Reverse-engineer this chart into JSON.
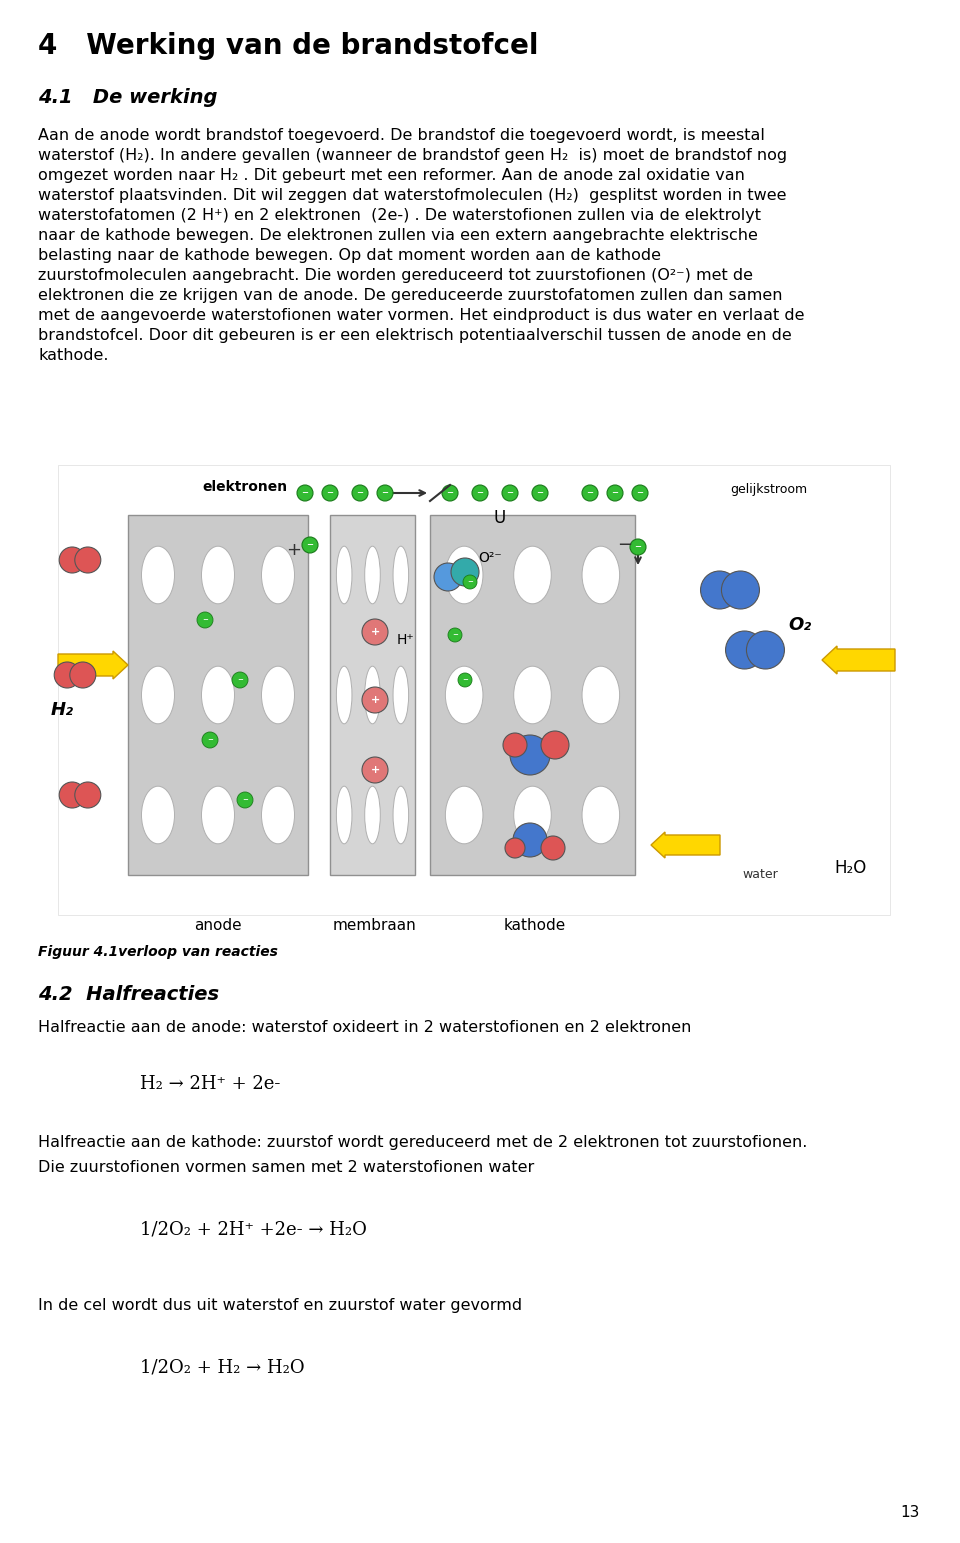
{
  "page_width": 9.6,
  "page_height": 15.43,
  "bg_color": "#ffffff",
  "ml": 0.057,
  "chapter_title": "4   Werking van de brandstofcel",
  "section_41_title": "4.1   De werking",
  "body_text_lines": [
    "Aan de anode wordt brandstof toegevoerd. De brandstof die toegevoerd wordt, is meestal",
    "waterstof (H₂). In andere gevallen (wanneer de brandstof geen H₂  is) moet de brandstof nog",
    "omgezet worden naar H₂ . Dit gebeurt met een reformer. Aan de anode zal oxidatie van",
    "waterstof plaatsvinden. Dit wil zeggen dat waterstofmoleculen (H₂)  gesplitst worden in twee",
    "waterstofatomen (2 H⁺) en 2 elektronen  (2e-) . De waterstofionen zullen via de elektrolyt",
    "naar de kathode bewegen. De elektronen zullen via een extern aangebrachte elektrische",
    "belasting naar de kathode bewegen. Op dat moment worden aan de kathode",
    "zuurstofmoleculen aangebracht. Die worden gereduceerd tot zuurstofionen (O²⁻) met de",
    "elektronen die ze krijgen van de anode. De gereduceerde zuurstofatomen zullen dan samen",
    "met de aangevoerde waterstofionen water vormen. Het eindproduct is dus water en verlaat de",
    "brandstofcel. Door dit gebeuren is er een elektrisch potentiaalverschil tussen de anode en de",
    "kathode."
  ],
  "figuur_caption": "Figuur 4.1verloop van reacties",
  "section_42_title": "4.2  Halfreacties",
  "halfreactie_anode_text": "Halfreactie aan de anode: waterstof oxideert in 2 waterstofionen en 2 elektronen",
  "halfreactie_kathode_text1": "Halfreactie aan de kathode: zuurstof wordt gereduceerd met de 2 elektronen tot zuurstofionen.",
  "halfreactie_kathode_text2": "Die zuurstofionen vormen samen met 2 waterstofionen water",
  "cel_text": "In de cel wordt dus uit waterstof en zuurstof water gevormd",
  "page_number": "13",
  "chapter_fontsize": 20,
  "section_fontsize": 14,
  "body_fontsize": 11.5,
  "caption_fontsize": 10,
  "formula_fontsize": 13
}
